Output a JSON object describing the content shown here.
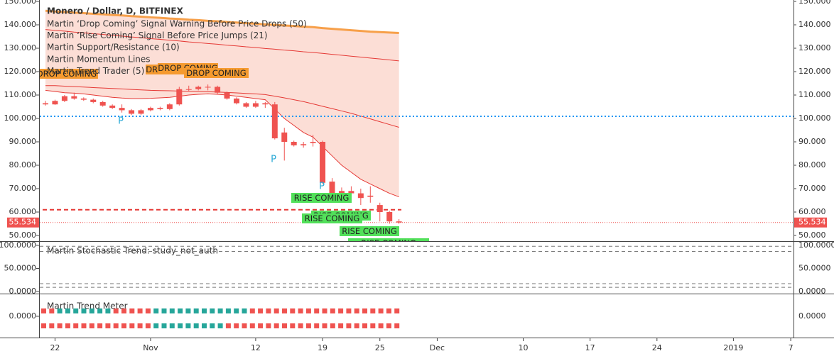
{
  "chart_data": {
    "type": "candlestick",
    "title": "Monero / Dollar, D, BITFINEX",
    "legend_items": [
      "Martin ‘Drop Coming’ Signal Warning Before Price Drops (50)",
      "Martin ‘Rise Coming’ Signal Before Price Jumps (21)",
      "Martin Support/Resistance (10)",
      "Martin Momentum Lines",
      "Martin Trend Trader (5)"
    ],
    "categories": [
      null,
      "22",
      null,
      null,
      null,
      null,
      null,
      null,
      null,
      null,
      null,
      "Nov",
      null,
      null,
      null,
      null,
      null,
      null,
      null,
      null,
      null,
      null,
      "12",
      null,
      null,
      null,
      null,
      null,
      null,
      "19",
      null,
      null,
      null,
      null,
      null,
      "25",
      null,
      null,
      null,
      null,
      null,
      "Dec",
      null,
      null,
      null,
      null,
      null,
      null,
      null,
      null,
      "10",
      null,
      null,
      null,
      null,
      null,
      null,
      "17",
      null,
      null,
      null,
      null,
      null,
      null,
      "24",
      null,
      null,
      null,
      null,
      null,
      null,
      null,
      "2019",
      null,
      null,
      null,
      null,
      null,
      "7",
      null
    ],
    "open": [
      106.5,
      106,
      107.5,
      109.5,
      108.5,
      108,
      107,
      105.5,
      104.5,
      103.5,
      102,
      103.5,
      104.5,
      104,
      106,
      112.5,
      112.5,
      113.5,
      113.5,
      111,
      108.5,
      106.5,
      105,
      106.5,
      106,
      94,
      90,
      89,
      90,
      90,
      73,
      68,
      69,
      68,
      67,
      63,
      60,
      56,
      null,
      null,
      null,
      null,
      null,
      null,
      null,
      null,
      null,
      null,
      null,
      null,
      null,
      null,
      null,
      null,
      null,
      null,
      null,
      null,
      null,
      null,
      null,
      null,
      null,
      null,
      null,
      null,
      null,
      null,
      null,
      null,
      null,
      null,
      null,
      null,
      null,
      null,
      null,
      null,
      null,
      null
    ],
    "high": [
      107.5,
      108,
      110,
      111,
      109,
      108.5,
      107.5,
      106,
      106,
      104,
      104,
      105,
      105,
      106.5,
      113.5,
      114,
      114,
      114.5,
      114,
      111.5,
      109,
      107,
      107.5,
      107,
      107,
      96,
      90.5,
      90,
      93,
      90.5,
      74.5,
      70.5,
      71,
      70,
      71,
      64,
      60.5,
      57,
      null,
      null,
      null,
      null,
      null,
      null,
      null,
      null,
      null,
      null,
      null,
      null,
      null,
      null,
      null,
      null,
      null,
      null,
      null,
      null,
      null,
      null,
      null,
      null,
      null,
      null,
      null,
      null,
      null,
      null,
      null,
      null,
      null,
      null,
      null,
      null,
      null,
      null,
      null,
      null,
      null,
      null
    ],
    "low": [
      105.5,
      105.8,
      107,
      108,
      107.5,
      106.5,
      105,
      104,
      102.5,
      101.5,
      101.5,
      103,
      103.5,
      103.5,
      105.5,
      111.5,
      112,
      112,
      110.5,
      108,
      106,
      104.5,
      104.5,
      104.5,
      91,
      82,
      88,
      87.5,
      88,
      72,
      66,
      66.5,
      66.5,
      63,
      64,
      56,
      55,
      55,
      null,
      null,
      null,
      null,
      null,
      null,
      null,
      null,
      null,
      null,
      null,
      null,
      null,
      null,
      null,
      null,
      null,
      null,
      null,
      null,
      null,
      null,
      null,
      null,
      null,
      null,
      null,
      null,
      null,
      null,
      null,
      null,
      null,
      null,
      null,
      null,
      null,
      null,
      null,
      null,
      null,
      null
    ],
    "close": [
      106,
      107.5,
      109.5,
      108.5,
      108,
      107,
      105.5,
      104.5,
      103.5,
      102,
      103.5,
      104.5,
      104,
      106,
      112.5,
      112.5,
      113.5,
      113.5,
      111,
      108.5,
      106.5,
      105,
      106.5,
      106,
      91.5,
      90,
      88.5,
      88.5,
      89.5,
      72.5,
      67,
      69,
      68,
      66,
      66.5,
      60,
      56,
      55.534,
      null,
      null,
      null,
      null,
      null,
      null,
      null,
      null,
      null,
      null,
      null,
      null,
      null,
      null,
      null,
      null,
      null,
      null,
      null,
      null,
      null,
      null,
      null,
      null,
      null,
      null,
      null,
      null,
      null,
      null,
      null,
      null,
      null,
      null,
      null,
      null,
      null,
      null,
      null,
      null,
      null,
      null
    ],
    "candle_color": "#ef5350",
    "ribbon": [
      {
        "color": "#f7a04a",
        "width": 3,
        "values": [
          146.0,
          145.7,
          145.5,
          145.2,
          145.0,
          144.7,
          144.5,
          144.2,
          144.0,
          143.7,
          143.5,
          143.2,
          143.0,
          142.7,
          142.5,
          142.2,
          142.0,
          141.7,
          141.5,
          141.2,
          141.0,
          140.7,
          140.5,
          140.2,
          140.0,
          139.7,
          139.5,
          139.2,
          139.0,
          138.6,
          138.3,
          138.0,
          137.7,
          137.4,
          137.1,
          136.9,
          136.7,
          136.5,
          null,
          null,
          null,
          null,
          null,
          null,
          null,
          null,
          null,
          null,
          null,
          null,
          null,
          null,
          null,
          null,
          null,
          null,
          null,
          null,
          null,
          null,
          null,
          null,
          null,
          null,
          null,
          null,
          null,
          null,
          null,
          null,
          null,
          null,
          null,
          null,
          null,
          null,
          null,
          null,
          null,
          null
        ]
      },
      {
        "color": "#e53935",
        "width": 1,
        "values": [
          138.0,
          137.6,
          137.3,
          136.9,
          136.6,
          136.2,
          135.9,
          135.5,
          135.2,
          134.8,
          134.5,
          134.1,
          133.8,
          133.4,
          133.1,
          132.7,
          132.4,
          132.0,
          131.7,
          131.3,
          131.0,
          130.6,
          130.3,
          129.9,
          129.6,
          129.2,
          128.9,
          128.5,
          128.2,
          127.8,
          127.4,
          127.0,
          126.6,
          126.2,
          125.8,
          125.4,
          125.0,
          124.6,
          null,
          null,
          null,
          null,
          null,
          null,
          null,
          null,
          null,
          null,
          null,
          null,
          null,
          null,
          null,
          null,
          null,
          null,
          null,
          null,
          null,
          null,
          null,
          null,
          null,
          null,
          null,
          null,
          null,
          null,
          null,
          null,
          null,
          null,
          null,
          null,
          null,
          null,
          null,
          null,
          null,
          null
        ]
      },
      {
        "color": "#e53935",
        "width": 1,
        "values": [
          114,
          114,
          113.8,
          113.6,
          113.4,
          113.2,
          113,
          112.8,
          112.6,
          112.4,
          112.2,
          112,
          111.9,
          111.8,
          111.7,
          111.6,
          111.5,
          111.4,
          111.3,
          111.1,
          110.9,
          110.7,
          110.5,
          110.2,
          109.5,
          108.8,
          108,
          107.2,
          106.2,
          105.2,
          104.2,
          103.2,
          102.2,
          101,
          99.8,
          98.6,
          97.4,
          96.2,
          null,
          null,
          null,
          null,
          null,
          null,
          null,
          null,
          null,
          null,
          null,
          null,
          null,
          null,
          null,
          null,
          null,
          null,
          null,
          null,
          null,
          null,
          null,
          null,
          null,
          null,
          null,
          null,
          null,
          null,
          null,
          null,
          null,
          null,
          null,
          null,
          null,
          null,
          null,
          null,
          null,
          null
        ]
      },
      {
        "color": "#e53935",
        "width": 1,
        "values": [
          112,
          111.5,
          111,
          110.8,
          110.5,
          110,
          109.5,
          109,
          108.7,
          108.5,
          108.5,
          108.6,
          108.8,
          109,
          109.5,
          110,
          110.3,
          110.5,
          110.3,
          110,
          109.5,
          109,
          108.5,
          108,
          104,
          100,
          97,
          94,
          92,
          88,
          84,
          80,
          77,
          74,
          72,
          70,
          68,
          66.5,
          null,
          null,
          null,
          null,
          null,
          null,
          null,
          null,
          null,
          null,
          null,
          null,
          null,
          null,
          null,
          null,
          null,
          null,
          null,
          null,
          null,
          null,
          null,
          null,
          null,
          null,
          null,
          null,
          null,
          null,
          null,
          null,
          null,
          null,
          null,
          null,
          null,
          null,
          null,
          null,
          null,
          null
        ]
      }
    ],
    "ribbon_fill": "#fbd3c8",
    "levels": [
      {
        "value": 100.9,
        "color": "#2196f3",
        "style": "dotted"
      },
      {
        "value": 61,
        "color": "#e53935",
        "style": "dashed"
      }
    ],
    "last_price": 55.534,
    "last_price_color": "#ef5350",
    "ylim": [
      50,
      150
    ],
    "yticks": [
      {
        "value": 50,
        "label": "50.000"
      },
      {
        "value": 60,
        "label": "60.000"
      },
      {
        "value": 70,
        "label": "70.000"
      },
      {
        "value": 80,
        "label": "80.000"
      },
      {
        "value": 90,
        "label": "90.000"
      },
      {
        "value": 100,
        "label": "100.000"
      },
      {
        "value": 110,
        "label": "110.000"
      },
      {
        "value": 120,
        "label": "120.000"
      },
      {
        "value": 130,
        "label": "130.000"
      },
      {
        "value": 140,
        "label": "140.000"
      },
      {
        "value": 150,
        "label": "150.000"
      }
    ],
    "signals": [
      {
        "text": "DROP COMING",
        "color": "#f59a2f",
        "box": true
      },
      {
        "text": "DROP COMING",
        "color": "#f59a2f",
        "box": true
      },
      {
        "text": "DROP COMING",
        "color": "#f59a2f",
        "box": true
      },
      {
        "text": "DROP COMING",
        "color": "#f59a2f",
        "box": true
      },
      {
        "text": "RISE COMING",
        "color": "#52e05a",
        "box": true
      },
      {
        "text": "RISE COMING",
        "color": "#52e05a",
        "box": true
      },
      {
        "text": "RISE COMING",
        "color": "#52e05a",
        "box": true
      },
      {
        "text": "RISE COMING",
        "color": "#52e05a",
        "box": true
      },
      {
        "text": "RISE COMING",
        "color": "#52e05a",
        "box": true
      },
      {
        "text": "P",
        "color": "#29a9d6",
        "box": false
      },
      {
        "text": "P",
        "color": "#29a9d6",
        "box": false
      },
      {
        "text": "P",
        "color": "#29a9d6",
        "box": false
      }
    ],
    "stochastic": {
      "title": "Martin Stochastic Trend: study_not_auth",
      "ylim": [
        0,
        100
      ],
      "yticks": [
        {
          "value": 0,
          "label": "0.0000"
        },
        {
          "value": 50,
          "label": "50.0000"
        },
        {
          "value": 100,
          "label": "100.0000"
        }
      ],
      "levels": [
        98,
        87,
        17,
        9
      ]
    },
    "trend_meter": {
      "title": "Martin Trend Meter",
      "ytick": {
        "value": 0,
        "label": "0.0000"
      },
      "palette": [
        "#ef5350",
        "#26a69a"
      ],
      "rows": [
        [
          0,
          0,
          1,
          1,
          1,
          1,
          1,
          1,
          1,
          0,
          0,
          0,
          0,
          0,
          1,
          1,
          1,
          1,
          1,
          1,
          1,
          1,
          1,
          1,
          1,
          1,
          0,
          0,
          0,
          0,
          0,
          0,
          0,
          0,
          0,
          0,
          0,
          0,
          0,
          0,
          0,
          0,
          0,
          0,
          0
        ],
        [
          0,
          0,
          0,
          0,
          0,
          0,
          0,
          0,
          0,
          0,
          0,
          0,
          0,
          0,
          1,
          1,
          1,
          1,
          1,
          1,
          1,
          1,
          1,
          0,
          0,
          0,
          0,
          0,
          0,
          0,
          0,
          0,
          0,
          0,
          0,
          0,
          0,
          0,
          0,
          0,
          0,
          0,
          0,
          0,
          0
        ]
      ]
    }
  }
}
